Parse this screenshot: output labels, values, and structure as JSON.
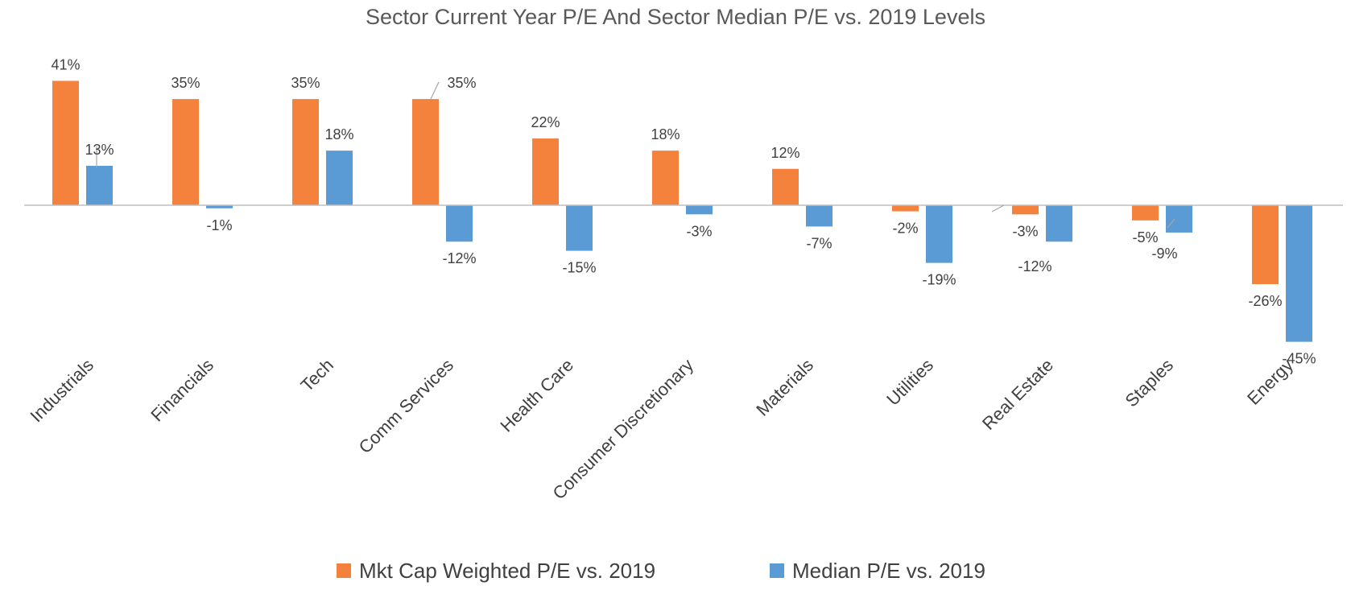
{
  "chart_data": {
    "type": "bar",
    "title": "Sector Current Year P/E And Sector Median P/E vs. 2019 Levels",
    "categories": [
      "Industrials",
      "Financials",
      "Tech",
      "Comm Services",
      "Health Care",
      "Consumer Discretionary",
      "Materials",
      "Utilities",
      "Real Estate",
      "Staples",
      "Energy"
    ],
    "series": [
      {
        "name": "Mkt Cap Weighted P/E vs. 2019",
        "color": "#F4823C",
        "values": [
          41,
          35,
          35,
          35,
          22,
          18,
          12,
          -2,
          -3,
          -5,
          -26
        ],
        "labels": [
          "41%",
          "35%",
          "35%",
          "35%",
          "22%",
          "18%",
          "12%",
          "-2%",
          "-3%",
          "-5%",
          "-26%"
        ]
      },
      {
        "name": "Median P/E vs. 2019",
        "color": "#5B9BD5",
        "values": [
          13,
          -1,
          18,
          -12,
          -15,
          -3,
          -7,
          -19,
          -12,
          -9,
          -45
        ],
        "labels": [
          "13%",
          "-1%",
          "18%",
          "-12%",
          "-15%",
          "-3%",
          "-7%",
          "-19%",
          "-12%",
          "-9%",
          "-45%"
        ]
      }
    ],
    "ylim": [
      -50,
      45
    ],
    "grid": false,
    "legend": "bottom"
  }
}
